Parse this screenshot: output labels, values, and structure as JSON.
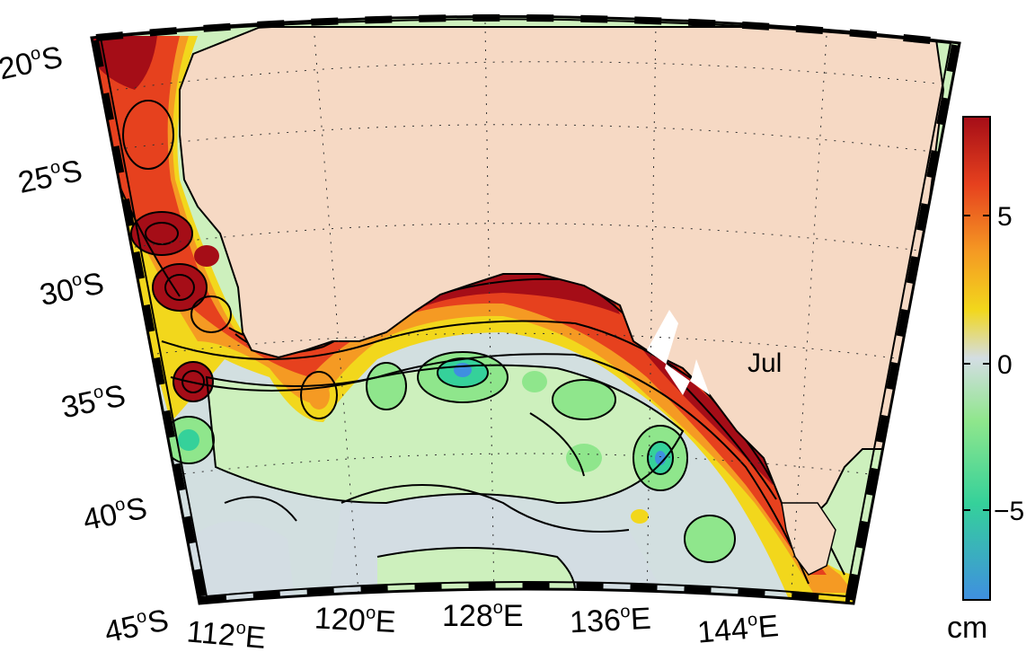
{
  "map": {
    "month": "Jul",
    "lat_labels": [
      {
        "deg": "20",
        "hemi": "S"
      },
      {
        "deg": "25",
        "hemi": "S"
      },
      {
        "deg": "30",
        "hemi": "S"
      },
      {
        "deg": "35",
        "hemi": "S"
      },
      {
        "deg": "40",
        "hemi": "S"
      },
      {
        "deg": "45",
        "hemi": "S"
      }
    ],
    "lon_labels": [
      {
        "deg": "112",
        "hemi": "E"
      },
      {
        "deg": "120",
        "hemi": "E"
      },
      {
        "deg": "128",
        "hemi": "E"
      },
      {
        "deg": "136",
        "hemi": "E"
      },
      {
        "deg": "144",
        "hemi": "E"
      }
    ],
    "degree_symbol": "o",
    "colors": {
      "land": "#f6d9c4",
      "ocean_neutral": "#d3dde3",
      "ocean_light_green": "#cdf0bd",
      "ocean_green": "#8fe68c",
      "ocean_blue": "#3f8fe0",
      "coast_red": "#a50d17",
      "coast_orange": "#f08a23",
      "coast_yellow": "#f2d71c"
    }
  },
  "colorbar": {
    "ticks": [
      "5",
      "0",
      "−5"
    ],
    "unit": "cm",
    "colors": [
      "#a50d17",
      "#e6411e",
      "#f59a23",
      "#f2d71c",
      "#d3dde3",
      "#8fe68c",
      "#35d19a",
      "#3f8fe0"
    ]
  }
}
